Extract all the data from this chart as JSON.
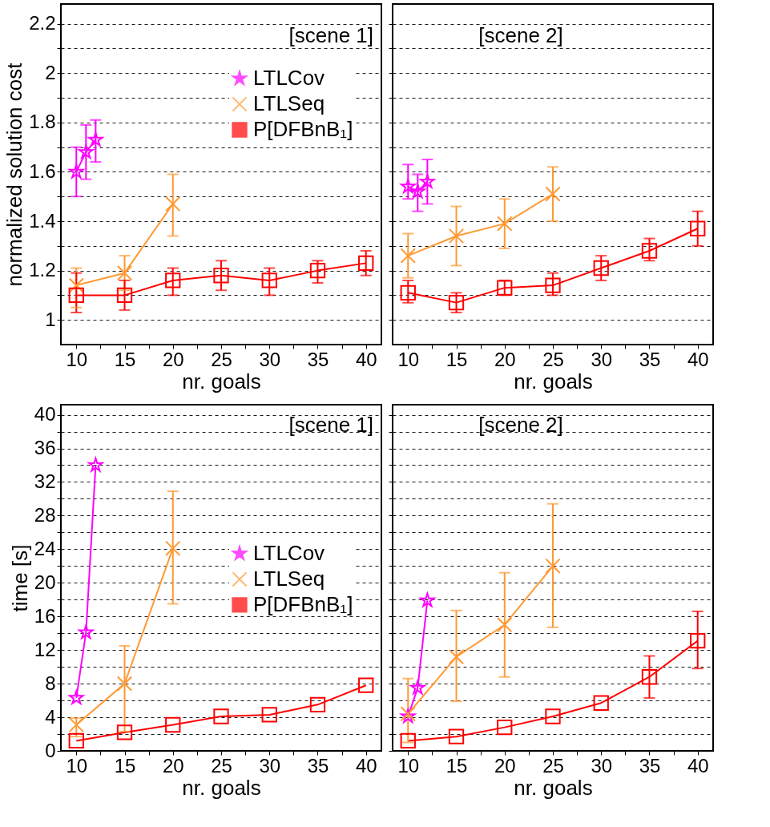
{
  "chart_data": [
    {
      "type": "line",
      "xlabel": "nr. goals",
      "ylabel": "normalized solution cost",
      "annotations": [
        "[scene 1]"
      ],
      "legend": "top right",
      "grid": "y",
      "xlim": [
        8.4,
        41.6
      ],
      "ylim": [
        0.9,
        2.28
      ],
      "xticks": [
        10,
        {
          "value": 12.5,
          "label": null
        },
        15,
        {
          "value": 17.5,
          "label": null
        },
        20,
        {
          "value": 22.5,
          "label": null
        },
        25,
        {
          "value": 27.5,
          "label": null
        },
        30,
        {
          "value": 32.5,
          "label": null
        },
        35,
        {
          "value": 37.5,
          "label": null
        },
        40
      ],
      "yticks": [
        1,
        {
          "value": 1.1,
          "label": null
        },
        1.2,
        {
          "value": 1.3,
          "label": null
        },
        1.4,
        {
          "value": 1.5,
          "label": null
        },
        1.6,
        {
          "value": 1.7,
          "label": null
        },
        1.8,
        {
          "value": 1.9,
          "label": null
        },
        2,
        {
          "value": 2.1,
          "label": null
        },
        2.2
      ],
      "series": [
        {
          "name": "LTLCov",
          "color": "#ff00ff",
          "marker": "star",
          "x": [
            10,
            11,
            12
          ],
          "values": [
            1.6,
            1.68,
            1.73
          ],
          "errors": [
            [
              1.5,
              1.7
            ],
            [
              1.57,
              1.79
            ],
            [
              1.64,
              1.81
            ]
          ]
        },
        {
          "name": "LTLSeq",
          "color": "#ff9933",
          "marker": "cross",
          "x": [
            10,
            15,
            20
          ],
          "values": [
            1.14,
            1.19,
            1.47
          ],
          "errors": [
            [
              1.05,
              1.21
            ],
            [
              1.12,
              1.26
            ],
            [
              1.34,
              1.59
            ]
          ]
        },
        {
          "name": "P[DFBnB₁]",
          "color": "#ff0000",
          "marker": "square",
          "x": [
            10,
            15,
            20,
            25,
            30,
            35,
            40
          ],
          "values": [
            1.1,
            1.1,
            1.16,
            1.18,
            1.16,
            1.2,
            1.23
          ],
          "errors": [
            [
              1.03,
              1.19
            ],
            [
              1.04,
              1.16
            ],
            [
              1.1,
              1.21
            ],
            [
              1.12,
              1.24
            ],
            [
              1.1,
              1.21
            ],
            [
              1.15,
              1.24
            ],
            [
              1.18,
              1.28
            ]
          ]
        }
      ]
    },
    {
      "type": "line",
      "xlabel": "nr. goals",
      "annotations": [
        "[scene 2]"
      ],
      "grid": "y",
      "tick_labels": "x",
      "xlim": [
        8.4,
        41.6
      ],
      "ylim": [
        0.9,
        2.28
      ],
      "xticks": [
        10,
        {
          "value": 12.5,
          "label": null
        },
        15,
        {
          "value": 17.5,
          "label": null
        },
        20,
        {
          "value": 22.5,
          "label": null
        },
        25,
        {
          "value": 27.5,
          "label": null
        },
        30,
        {
          "value": 32.5,
          "label": null
        },
        35,
        {
          "value": 37.5,
          "label": null
        },
        40
      ],
      "yticks": [
        1,
        {
          "value": 1.1,
          "label": null
        },
        1.2,
        {
          "value": 1.3,
          "label": null
        },
        1.4,
        {
          "value": 1.5,
          "label": null
        },
        1.6,
        {
          "value": 1.7,
          "label": null
        },
        1.8,
        {
          "value": 1.9,
          "label": null
        },
        2,
        {
          "value": 2.1,
          "label": null
        },
        2.2
      ],
      "series": [
        {
          "color": "#ff00ff",
          "marker": "star",
          "x": [
            10,
            11,
            12
          ],
          "values": [
            1.54,
            1.52,
            1.56
          ],
          "errors": [
            [
              1.49,
              1.63
            ],
            [
              1.44,
              1.59
            ],
            [
              1.47,
              1.65
            ]
          ]
        },
        {
          "color": "#ff9933",
          "marker": "cross",
          "x": [
            10,
            15,
            20,
            25
          ],
          "values": [
            1.26,
            1.34,
            1.39,
            1.51
          ],
          "errors": [
            [
              1.17,
              1.35
            ],
            [
              1.22,
              1.46
            ],
            [
              1.29,
              1.49
            ],
            [
              1.4,
              1.62
            ]
          ]
        },
        {
          "color": "#ff0000",
          "marker": "square",
          "x": [
            10,
            15,
            20,
            25,
            30,
            35,
            40
          ],
          "values": [
            1.11,
            1.07,
            1.13,
            1.14,
            1.21,
            1.28,
            1.37
          ],
          "errors": [
            [
              1.07,
              1.16
            ],
            [
              1.03,
              1.11
            ],
            [
              1.1,
              1.16
            ],
            [
              1.1,
              1.19
            ],
            [
              1.16,
              1.26
            ],
            [
              1.24,
              1.33
            ],
            [
              1.3,
              1.44
            ]
          ]
        }
      ]
    },
    {
      "type": "line",
      "xlabel": "nr. goals",
      "ylabel": "time [s]",
      "annotations": [
        "[scene 1]"
      ],
      "legend": "right",
      "grid": "y",
      "xlim": [
        8.4,
        41.6
      ],
      "ylim": [
        0,
        41.2
      ],
      "xticks": [
        10,
        {
          "value": 12.5,
          "label": null
        },
        15,
        {
          "value": 17.5,
          "label": null
        },
        20,
        {
          "value": 22.5,
          "label": null
        },
        25,
        {
          "value": 27.5,
          "label": null
        },
        30,
        {
          "value": 32.5,
          "label": null
        },
        35,
        {
          "value": 37.5,
          "label": null
        },
        40
      ],
      "yticks": [
        0,
        {
          "value": 2,
          "label": null
        },
        4,
        {
          "value": 6,
          "label": null
        },
        8,
        {
          "value": 10,
          "label": null
        },
        12,
        {
          "value": 14,
          "label": null
        },
        16,
        {
          "value": 18,
          "label": null
        },
        20,
        {
          "value": 22,
          "label": null
        },
        24,
        {
          "value": 26,
          "label": null
        },
        28,
        {
          "value": 30,
          "label": null
        },
        32,
        {
          "value": 34,
          "label": null
        },
        36,
        {
          "value": 38,
          "label": null
        },
        40
      ],
      "series": [
        {
          "name": "LTLCov",
          "color": "#ff00ff",
          "marker": "star",
          "x": [
            10,
            11,
            12
          ],
          "values": [
            6.3,
            14.1,
            34
          ]
        },
        {
          "name": "LTLSeq",
          "color": "#ff9933",
          "marker": "cross",
          "x": [
            10,
            15,
            20
          ],
          "values": [
            3.1,
            8,
            24.1
          ],
          "errors": [
            [
              1.7,
              3.9
            ],
            [
              2.3,
              12.5
            ],
            [
              17.5,
              30.9
            ]
          ]
        },
        {
          "name": "P[DFBnB₁]",
          "color": "#ff0000",
          "marker": "square",
          "x": [
            10,
            15,
            20,
            25,
            30,
            35,
            40
          ],
          "values": [
            1.2,
            2.2,
            3.1,
            4.1,
            4.3,
            5.5,
            7.8
          ]
        }
      ]
    },
    {
      "type": "line",
      "xlabel": "nr. goals",
      "annotations": [
        "[scene 2]"
      ],
      "grid": "y",
      "tick_labels": "x",
      "xlim": [
        8.4,
        41.6
      ],
      "ylim": [
        0,
        41.2
      ],
      "xticks": [
        10,
        {
          "value": 12.5,
          "label": null
        },
        15,
        {
          "value": 17.5,
          "label": null
        },
        20,
        {
          "value": 22.5,
          "label": null
        },
        25,
        {
          "value": 27.5,
          "label": null
        },
        30,
        {
          "value": 32.5,
          "label": null
        },
        35,
        {
          "value": 37.5,
          "label": null
        },
        40
      ],
      "yticks": [
        0,
        {
          "value": 2,
          "label": null
        },
        4,
        {
          "value": 6,
          "label": null
        },
        8,
        {
          "value": 10,
          "label": null
        },
        12,
        {
          "value": 14,
          "label": null
        },
        16,
        {
          "value": 18,
          "label": null
        },
        20,
        {
          "value": 22,
          "label": null
        },
        24,
        {
          "value": 26,
          "label": null
        },
        28,
        {
          "value": 30,
          "label": null
        },
        32,
        {
          "value": 34,
          "label": null
        },
        36,
        {
          "value": 38,
          "label": null
        },
        40
      ],
      "series": [
        {
          "color": "#ff00ff",
          "marker": "star",
          "x": [
            10,
            11,
            12
          ],
          "values": [
            4.1,
            7.5,
            17.9
          ]
        },
        {
          "color": "#ff9933",
          "marker": "cross",
          "x": [
            10,
            15,
            20,
            25
          ],
          "values": [
            4.4,
            11.2,
            15,
            22
          ],
          "errors": [
            [
              1,
              8.6
            ],
            [
              5.9,
              16.7
            ],
            [
              8.8,
              21.2
            ],
            [
              14.7,
              29.4
            ]
          ]
        },
        {
          "color": "#ff0000",
          "marker": "square",
          "x": [
            10,
            15,
            20,
            25,
            30,
            35,
            40
          ],
          "values": [
            1.2,
            1.7,
            2.8,
            4.1,
            5.7,
            8.8,
            13.1
          ],
          "errors": [
            null,
            null,
            null,
            null,
            null,
            [
              6.3,
              11.3
            ],
            [
              9.8,
              16.6
            ]
          ]
        }
      ]
    }
  ]
}
